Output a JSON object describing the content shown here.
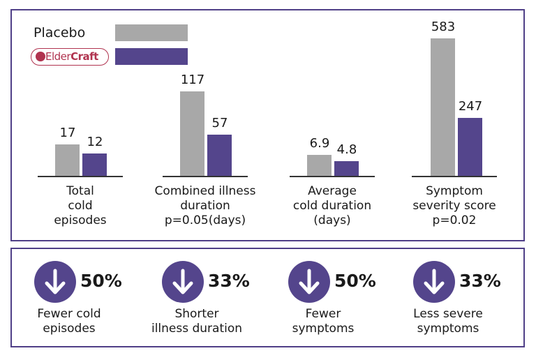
{
  "colors": {
    "placebo": "#a8a8a8",
    "eldercraft": "#54458c",
    "border": "#4f3f87",
    "logo": "#b0334f"
  },
  "legend": {
    "placebo_label": "Placebo",
    "eldercraft_logo": "ElderCraft"
  },
  "chart_data": {
    "type": "bar",
    "categories": [
      "Total cold episodes",
      "Combined illness duration p=0.05(days)",
      "Average cold duration (days)",
      "Symptom severity score p=0.02"
    ],
    "category_lines": [
      [
        "Total",
        "cold",
        "episodes"
      ],
      [
        "Combined illness",
        "duration",
        "p=0.05(days)"
      ],
      [
        "Average",
        "cold duration",
        "(days)"
      ],
      [
        "Symptom",
        "severity score",
        "p=0.02"
      ]
    ],
    "series": [
      {
        "name": "Placebo",
        "values": [
          17,
          117,
          6.9,
          583
        ],
        "labels": [
          "17",
          "117",
          "6.9",
          "583"
        ]
      },
      {
        "name": "ElderCraft",
        "values": [
          12,
          57,
          4.8,
          247
        ],
        "labels": [
          "12",
          "57",
          "4.8",
          "247"
        ]
      }
    ]
  },
  "stats": [
    {
      "pct": "50%",
      "lines": [
        "Fewer cold",
        "episodes"
      ],
      "icon": "arrow-down-icon"
    },
    {
      "pct": "33%",
      "lines": [
        "Shorter",
        "illness duration"
      ],
      "icon": "arrow-down-icon"
    },
    {
      "pct": "50%",
      "lines": [
        "Fewer",
        "symptoms"
      ],
      "icon": "arrow-down-icon"
    },
    {
      "pct": "33%",
      "lines": [
        "Less severe",
        "symptoms"
      ],
      "icon": "arrow-down-icon"
    }
  ]
}
